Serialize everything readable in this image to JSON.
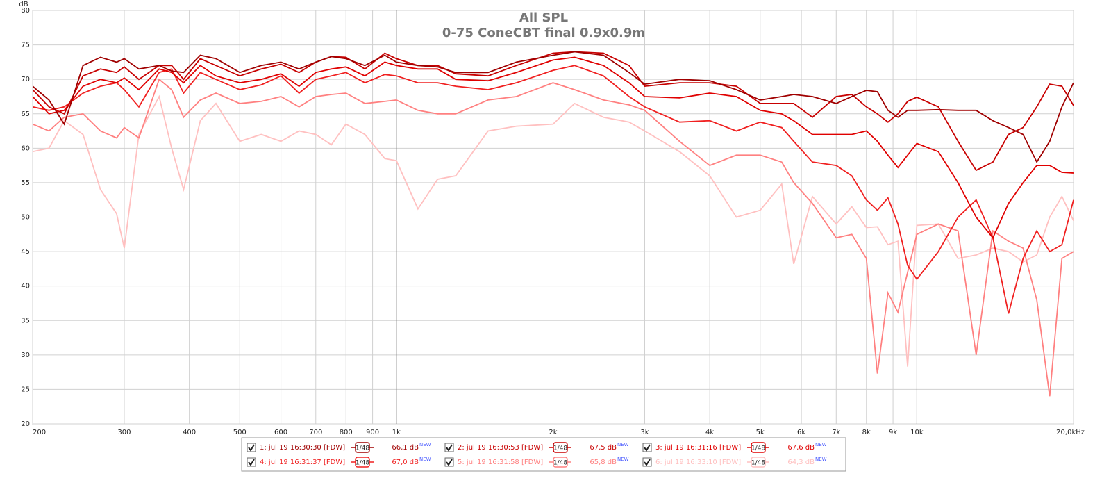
{
  "chart_data": {
    "type": "line",
    "title": "All SPL",
    "subtitle": "0-75 ConeCBT final 0.9x0.9m",
    "y_label": "dB",
    "log_x": true,
    "grid": true,
    "xlim": [
      200,
      20000
    ],
    "ylim": [
      20,
      80
    ],
    "xticks": [
      200,
      300,
      400,
      500,
      600,
      700,
      800,
      900,
      {
        "value": 1000,
        "label": "1k"
      },
      {
        "value": 2000,
        "label": "2k"
      },
      {
        "value": 3000,
        "label": "3k"
      },
      {
        "value": 4000,
        "label": "4k"
      },
      {
        "value": 5000,
        "label": "5k"
      },
      {
        "value": 6000,
        "label": "6k"
      },
      {
        "value": 7000,
        "label": "7k"
      },
      {
        "value": 8000,
        "label": "8k"
      },
      {
        "value": 9000,
        "label": "9k"
      },
      {
        "value": 10000,
        "label": "10k"
      },
      {
        "value": 20000,
        "label": "20,0kHz"
      }
    ],
    "yticks": [
      20,
      25,
      30,
      35,
      40,
      45,
      50,
      55,
      60,
      65,
      70,
      75,
      80
    ],
    "x": [
      200,
      215,
      230,
      250,
      270,
      290,
      300,
      320,
      350,
      370,
      390,
      420,
      450,
      500,
      550,
      600,
      650,
      700,
      750,
      800,
      870,
      950,
      1000,
      1100,
      1200,
      1300,
      1500,
      1700,
      2000,
      2200,
      2500,
      2800,
      3000,
      3500,
      4000,
      4500,
      5000,
      5500,
      5800,
      6300,
      7000,
      7500,
      8000,
      8400,
      8800,
      9200,
      9600,
      10000,
      11000,
      12000,
      13000,
      14000,
      15000,
      16000,
      17000,
      18000,
      19000,
      20000
    ],
    "series": [
      {
        "name": "1: jul 19 16:30:30 [FDW]",
        "smoothing": "1/48",
        "level": "66,1 dB",
        "badge": "NEW",
        "color": "#a00000",
        "values": [
          69,
          67,
          63.5,
          72,
          73.2,
          72.5,
          73,
          71.5,
          72,
          71.2,
          71,
          73.5,
          73,
          71,
          72,
          72.5,
          71.5,
          72.5,
          73.3,
          73,
          72,
          73.5,
          72.5,
          72,
          71.8,
          71,
          71,
          72.5,
          73.5,
          74,
          73.5,
          71,
          69.3,
          70,
          69.8,
          68.5,
          67,
          67.5,
          67.8,
          67.5,
          66.5,
          67.5,
          68.4,
          68.2,
          65.5,
          64.5,
          65.5,
          65.5,
          65.6,
          65.5,
          65.5,
          64,
          63,
          62,
          58,
          61,
          66,
          69.5
        ]
      },
      {
        "name": "2: jul 19 16:30:53 [FDW]",
        "smoothing": "1/48",
        "level": "67,5 dB",
        "badge": "NEW",
        "color": "#c80000",
        "values": [
          68.5,
          66,
          65,
          70.5,
          71.5,
          71,
          71.8,
          70,
          72,
          72,
          70,
          73,
          72,
          70.5,
          71.5,
          72.2,
          71,
          72.5,
          73.3,
          73.2,
          71.5,
          73.8,
          73,
          72,
          72,
          70.8,
          70.5,
          72,
          73.8,
          74,
          73.8,
          72,
          69,
          69.5,
          69.5,
          69,
          66.5,
          66.5,
          66.5,
          64.5,
          67.5,
          67.8,
          66,
          65,
          63.8,
          65,
          66.8,
          67.4,
          66,
          61,
          56.8,
          58,
          62,
          63,
          66,
          69.3,
          69,
          66.2
        ]
      },
      {
        "name": "3: jul 19 16:31:16 [FDW]",
        "smoothing": "1/48",
        "level": "67,6 dB",
        "badge": "NEW",
        "color": "#e00000",
        "values": [
          67.5,
          65,
          65.5,
          69,
          70,
          69.5,
          70.2,
          68.5,
          71.5,
          71,
          69.5,
          72,
          70.5,
          69.5,
          70,
          70.8,
          69,
          71,
          71.5,
          71.8,
          70.5,
          72.5,
          72,
          71.5,
          71.5,
          70,
          69.8,
          71,
          72.8,
          73.2,
          72,
          69.5,
          67.5,
          67.3,
          68,
          67.5,
          65.5,
          65,
          64,
          62,
          62,
          62,
          62.5,
          61,
          59,
          57.2,
          59,
          60.7,
          59.5,
          55,
          50,
          47,
          52,
          55,
          57.5,
          57.5,
          56.5,
          56.4
        ]
      },
      {
        "name": "4: jul 19 16:31:37 [FDW]",
        "smoothing": "1/48",
        "level": "67,0 dB",
        "badge": "NEW",
        "color": "#f02020",
        "values": [
          66,
          65.5,
          66,
          68,
          69,
          69.5,
          68.5,
          66,
          71,
          71.5,
          68,
          71,
          70,
          68.5,
          69.2,
          70.5,
          68,
          70,
          70.5,
          71,
          69.5,
          70.7,
          70.5,
          69.5,
          69.5,
          69,
          68.5,
          69.5,
          71.3,
          72,
          70.5,
          67.5,
          66,
          63.8,
          64,
          62.5,
          63.8,
          63,
          61,
          58,
          57.5,
          56,
          52.5,
          51,
          52.8,
          49,
          43,
          41,
          45,
          50,
          52.5,
          47,
          36,
          44,
          48,
          45,
          46,
          52.5
        ]
      },
      {
        "name": "5: jul 19 16:31:58 [FDW]",
        "smoothing": "1/48",
        "level": "65,8 dB",
        "badge": "NEW",
        "color": "#ff8080",
        "values": [
          63.5,
          62.5,
          64.5,
          65,
          62.5,
          61.5,
          63,
          61.5,
          70,
          68.5,
          64.5,
          67,
          68,
          66.5,
          66.8,
          67.5,
          66,
          67.5,
          67.8,
          68,
          66.5,
          66.8,
          67,
          65.5,
          65,
          65,
          67,
          67.5,
          69.5,
          68.5,
          67,
          66.3,
          65.5,
          61,
          57.5,
          59,
          59,
          58,
          55,
          52,
          47,
          47.5,
          44,
          27.3,
          39,
          36.2,
          42,
          47.5,
          49,
          48,
          30,
          48,
          46.5,
          45.5,
          38,
          24,
          44,
          45
        ]
      },
      {
        "name": "6: jul 19 16:33:10 [FDW]",
        "smoothing": "1/48",
        "level": "64,3 dB",
        "badge": "NEW",
        "color": "#ffc0c0",
        "values": [
          59.5,
          60,
          64,
          62,
          54,
          50.5,
          45.5,
          62,
          67.5,
          60,
          54,
          64,
          66.5,
          61,
          62,
          61,
          62.5,
          62,
          60.5,
          63.5,
          62,
          58.5,
          58.2,
          51.2,
          55.5,
          56,
          62.5,
          63.2,
          63.5,
          66.5,
          64.5,
          63.8,
          62.5,
          59.5,
          56,
          50,
          51,
          54.8,
          43.2,
          53,
          49,
          51.5,
          48.5,
          48.6,
          46,
          46.5,
          28.3,
          48.8,
          49,
          44,
          44.5,
          45.5,
          45,
          43.5,
          44.5,
          50,
          53,
          49.5
        ]
      }
    ]
  }
}
